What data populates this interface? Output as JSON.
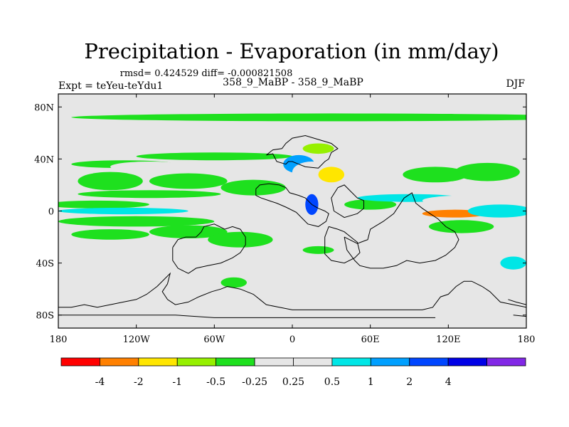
{
  "chart_data": {
    "type": "heatmap",
    "title": "Precipitation - Evaporation (in mm/day)",
    "stats_line": "rmsd= 0.424529 diff= -0.000821508",
    "left_label": "Expt = teYeu-teYdu1",
    "center_label": "358_9_MaBP - 358_9_MaBP",
    "right_label": "DJF",
    "xlim": [
      -180,
      180
    ],
    "ylim": [
      -90,
      90
    ],
    "x_ticks": [
      {
        "value": -180,
        "label": "180"
      },
      {
        "value": -120,
        "label": "120W"
      },
      {
        "value": -60,
        "label": "60W"
      },
      {
        "value": 0,
        "label": "0"
      },
      {
        "value": 60,
        "label": "60E"
      },
      {
        "value": 120,
        "label": "120E"
      },
      {
        "value": 180,
        "label": "180"
      }
    ],
    "y_ticks": [
      {
        "value": 80,
        "label": "80N"
      },
      {
        "value": 40,
        "label": "40N"
      },
      {
        "value": 0,
        "label": "0"
      },
      {
        "value": -40,
        "label": "40S"
      },
      {
        "value": -80,
        "label": "80S"
      }
    ],
    "colorbar": {
      "colors": [
        "#ff0000",
        "#ff8000",
        "#ffe600",
        "#96f000",
        "#1ee01e",
        "#e6e6e6",
        "#e6e6e6",
        "#00e6e6",
        "#00a0ff",
        "#0046ff",
        "#0000e6",
        "#8228e6"
      ],
      "labels": [
        "-4",
        "-2",
        "-1",
        "-0.5",
        "-0.25",
        "0.25",
        "0.5",
        "1",
        "2",
        "4"
      ]
    },
    "background_color": "#e6e6e6",
    "anomaly_regions": [
      {
        "lon": 30,
        "lat": 72,
        "dlon": 200,
        "dlat": 3,
        "value": -0.4
      },
      {
        "lon": -60,
        "lat": 66,
        "dlon": 60,
        "dlat": 2,
        "value": 0.35
      },
      {
        "lon": -150,
        "lat": 5,
        "dlon": 40,
        "dlat": 3,
        "value": -0.35
      },
      {
        "lon": -130,
        "lat": 0,
        "dlon": 50,
        "dlat": 2.5,
        "value": 0.7
      },
      {
        "lon": -120,
        "lat": -8,
        "dlon": 60,
        "dlat": 4,
        "value": -0.35
      },
      {
        "lon": -110,
        "lat": 13,
        "dlon": 55,
        "dlat": 3,
        "value": -0.35
      },
      {
        "lon": -140,
        "lat": 23,
        "dlon": 25,
        "dlat": 7,
        "value": -0.35
      },
      {
        "lon": -80,
        "lat": 23,
        "dlon": 30,
        "dlat": 6,
        "value": -0.45
      },
      {
        "lon": -30,
        "lat": 18,
        "dlon": 25,
        "dlat": 6,
        "value": -0.3
      },
      {
        "lon": -25,
        "lat": -3,
        "dlon": 20,
        "dlat": 10,
        "value": 0.35
      },
      {
        "lon": -80,
        "lat": -16,
        "dlon": 30,
        "dlat": 5,
        "value": -0.35
      },
      {
        "lon": -40,
        "lat": -22,
        "dlon": 25,
        "dlat": 6,
        "value": -0.3
      },
      {
        "lon": -140,
        "lat": -18,
        "dlon": 30,
        "dlat": 4,
        "value": -0.3
      },
      {
        "lon": -60,
        "lat": 42,
        "dlon": 60,
        "dlat": 3,
        "value": -0.35
      },
      {
        "lon": -130,
        "lat": 36,
        "dlon": 40,
        "dlat": 3,
        "value": -0.3
      },
      {
        "lon": -110,
        "lat": 34,
        "dlon": 30,
        "dlat": 4,
        "value": 0.3
      },
      {
        "lon": 5,
        "lat": 36,
        "dlon": 12,
        "dlat": 7,
        "value": 1.4
      },
      {
        "lon": 15,
        "lat": 30,
        "dlon": 15,
        "dlat": 8,
        "value": 0.4
      },
      {
        "lon": 15,
        "lat": 5,
        "dlon": 5,
        "dlat": 8,
        "value": 2.2
      },
      {
        "lon": 30,
        "lat": 10,
        "dlon": 10,
        "dlat": 5,
        "value": 0.45
      },
      {
        "lon": 25,
        "lat": -12,
        "dlon": 15,
        "dlat": 5,
        "value": 0.4
      },
      {
        "lon": 30,
        "lat": 28,
        "dlon": 10,
        "dlat": 6,
        "value": -1.5
      },
      {
        "lon": 20,
        "lat": 48,
        "dlon": 12,
        "dlat": 4,
        "value": -0.6
      },
      {
        "lon": 55,
        "lat": 20,
        "dlon": 15,
        "dlat": 4,
        "value": 0.3
      },
      {
        "lon": 55,
        "lat": 42,
        "dlon": 25,
        "dlat": 3,
        "value": 0.45
      },
      {
        "lon": 70,
        "lat": 36,
        "dlon": 20,
        "dlat": 3,
        "value": 0.35
      },
      {
        "lon": 85,
        "lat": 20,
        "dlon": 10,
        "dlat": 4,
        "value": 0.35
      },
      {
        "lon": 60,
        "lat": 5,
        "dlon": 20,
        "dlat": 4,
        "value": -0.35
      },
      {
        "lon": 60,
        "lat": -20,
        "dlon": 15,
        "dlat": 6,
        "value": 0.3
      },
      {
        "lon": 20,
        "lat": -38,
        "dlon": 15,
        "dlat": 4,
        "value": 0.3
      },
      {
        "lon": 110,
        "lat": 28,
        "dlon": 25,
        "dlat": 6,
        "value": -0.5
      },
      {
        "lon": 150,
        "lat": 30,
        "dlon": 25,
        "dlat": 7,
        "value": -0.5
      },
      {
        "lon": 130,
        "lat": 45,
        "dlon": 40,
        "dlat": 3,
        "value": 0.3
      },
      {
        "lon": 90,
        "lat": 10,
        "dlon": 40,
        "dlat": 3,
        "value": 0.6
      },
      {
        "lon": 125,
        "lat": -2,
        "dlon": 25,
        "dlat": 3,
        "value": -3
      },
      {
        "lon": 135,
        "lat": 8,
        "dlon": 35,
        "dlat": 4,
        "value": 0.35
      },
      {
        "lon": 160,
        "lat": 0,
        "dlon": 25,
        "dlat": 5,
        "value": 0.6
      },
      {
        "lon": 160,
        "lat": -18,
        "dlon": 20,
        "dlat": 7,
        "value": 0.35
      },
      {
        "lon": 130,
        "lat": -12,
        "dlon": 25,
        "dlat": 5,
        "value": -0.35
      },
      {
        "lon": 170,
        "lat": -40,
        "dlon": 10,
        "dlat": 5,
        "value": 0.6
      },
      {
        "lon": 150,
        "lat": -50,
        "dlon": 15,
        "dlat": 4,
        "value": 0.3
      },
      {
        "lon": 170,
        "lat": -60,
        "dlon": 8,
        "dlat": 3,
        "value": 0.3
      },
      {
        "lon": -45,
        "lat": -55,
        "dlon": 10,
        "dlat": 4,
        "value": -0.3
      },
      {
        "lon": 45,
        "lat": -33,
        "dlon": 12,
        "dlat": 4,
        "value": 0.35
      },
      {
        "lon": 100,
        "lat": -30,
        "dlon": 15,
        "dlat": 4,
        "value": 0.35
      },
      {
        "lon": 20,
        "lat": -30,
        "dlon": 12,
        "dlat": 3,
        "value": -0.3
      }
    ],
    "coastlines": [
      [
        [
          -20,
          43
        ],
        [
          -15,
          44
        ],
        [
          -12,
          38
        ],
        [
          -5,
          36
        ],
        [
          -3,
          38
        ],
        [
          0,
          38
        ],
        [
          5,
          36
        ],
        [
          10,
          34
        ],
        [
          20,
          33
        ],
        [
          25,
          38
        ],
        [
          28,
          40
        ],
        [
          30,
          45
        ],
        [
          35,
          48
        ],
        [
          30,
          52
        ],
        [
          20,
          55
        ],
        [
          10,
          58
        ],
        [
          0,
          56
        ],
        [
          -5,
          52
        ],
        [
          -8,
          48
        ],
        [
          -15,
          47
        ],
        [
          -20,
          43
        ]
      ],
      [
        [
          -28,
          17
        ],
        [
          -25,
          20
        ],
        [
          -18,
          21
        ],
        [
          -10,
          20
        ],
        [
          -5,
          18
        ],
        [
          -2,
          14
        ],
        [
          5,
          12
        ],
        [
          10,
          10
        ],
        [
          15,
          5
        ],
        [
          20,
          2
        ],
        [
          25,
          0
        ],
        [
          28,
          -2
        ],
        [
          26,
          -8
        ],
        [
          20,
          -12
        ],
        [
          12,
          -10
        ],
        [
          8,
          -6
        ],
        [
          3,
          -1
        ],
        [
          -5,
          3
        ],
        [
          -12,
          6
        ],
        [
          -18,
          8
        ],
        [
          -24,
          10
        ],
        [
          -28,
          12
        ],
        [
          -28,
          17
        ]
      ],
      [
        [
          35,
          18
        ],
        [
          40,
          20
        ],
        [
          45,
          15
        ],
        [
          50,
          10
        ],
        [
          55,
          8
        ],
        [
          55,
          2
        ],
        [
          50,
          -2
        ],
        [
          40,
          -5
        ],
        [
          32,
          0
        ],
        [
          30,
          10
        ],
        [
          35,
          18
        ]
      ],
      [
        [
          28,
          -12
        ],
        [
          35,
          -14
        ],
        [
          40,
          -16
        ],
        [
          45,
          -20
        ],
        [
          50,
          -24
        ],
        [
          52,
          -32
        ],
        [
          48,
          -36
        ],
        [
          40,
          -40
        ],
        [
          30,
          -38
        ],
        [
          25,
          -33
        ],
        [
          25,
          -20
        ],
        [
          28,
          -12
        ]
      ],
      [
        [
          40,
          -20
        ],
        [
          50,
          -25
        ],
        [
          58,
          -22
        ],
        [
          60,
          -14
        ],
        [
          70,
          -8
        ],
        [
          78,
          -2
        ],
        [
          82,
          4
        ],
        [
          86,
          10
        ],
        [
          92,
          14
        ],
        [
          95,
          6
        ],
        [
          100,
          2
        ],
        [
          106,
          -2
        ],
        [
          112,
          -6
        ],
        [
          118,
          -12
        ],
        [
          125,
          -16
        ],
        [
          128,
          -22
        ],
        [
          125,
          -28
        ],
        [
          118,
          -34
        ],
        [
          110,
          -38
        ],
        [
          98,
          -40
        ],
        [
          88,
          -38
        ],
        [
          80,
          -42
        ],
        [
          70,
          -44
        ],
        [
          60,
          -44
        ],
        [
          52,
          -42
        ],
        [
          48,
          -38
        ],
        [
          42,
          -30
        ],
        [
          40,
          -20
        ]
      ],
      [
        [
          -92,
          -28
        ],
        [
          -88,
          -22
        ],
        [
          -82,
          -20
        ],
        [
          -74,
          -20
        ],
        [
          -70,
          -16
        ],
        [
          -68,
          -12
        ],
        [
          -60,
          -10
        ],
        [
          -52,
          -14
        ],
        [
          -46,
          -12
        ],
        [
          -40,
          -14
        ],
        [
          -36,
          -20
        ],
        [
          -36,
          -26
        ],
        [
          -40,
          -32
        ],
        [
          -46,
          -36
        ],
        [
          -55,
          -40
        ],
        [
          -65,
          -42
        ],
        [
          -74,
          -44
        ],
        [
          -80,
          -48
        ],
        [
          -88,
          -44
        ],
        [
          -92,
          -38
        ],
        [
          -92,
          -28
        ]
      ],
      [
        [
          -180,
          -74
        ],
        [
          -170,
          -74
        ],
        [
          -160,
          -72
        ],
        [
          -150,
          -74
        ],
        [
          -140,
          -72
        ],
        [
          -130,
          -70
        ],
        [
          -120,
          -68
        ],
        [
          -112,
          -64
        ],
        [
          -104,
          -58
        ],
        [
          -98,
          -52
        ],
        [
          -94,
          -48
        ],
        [
          -96,
          -56
        ],
        [
          -100,
          -62
        ],
        [
          -96,
          -68
        ],
        [
          -90,
          -72
        ],
        [
          -80,
          -70
        ],
        [
          -72,
          -66
        ],
        [
          -62,
          -62
        ],
        [
          -55,
          -60
        ],
        [
          -50,
          -58
        ],
        [
          -40,
          -60
        ],
        [
          -30,
          -64
        ],
        [
          -25,
          -68
        ],
        [
          -20,
          -72
        ],
        [
          -10,
          -74
        ],
        [
          0,
          -76
        ],
        [
          20,
          -76
        ],
        [
          40,
          -76
        ],
        [
          60,
          -76
        ],
        [
          80,
          -76
        ],
        [
          100,
          -76
        ],
        [
          108,
          -74
        ],
        [
          114,
          -66
        ],
        [
          120,
          -64
        ],
        [
          126,
          -58
        ],
        [
          132,
          -54
        ],
        [
          138,
          -54
        ],
        [
          146,
          -58
        ],
        [
          152,
          -62
        ],
        [
          160,
          -70
        ],
        [
          170,
          -72
        ],
        [
          180,
          -74
        ]
      ],
      [
        [
          166,
          -68
        ],
        [
          172,
          -70
        ],
        [
          180,
          -72
        ]
      ],
      [
        [
          -180,
          -80
        ],
        [
          -160,
          -80
        ],
        [
          -140,
          -80
        ],
        [
          -120,
          -80
        ],
        [
          -90,
          -80
        ],
        [
          -60,
          -82
        ],
        [
          -30,
          -82
        ],
        [
          0,
          -82
        ],
        [
          30,
          -82
        ],
        [
          60,
          -82
        ],
        [
          90,
          -82
        ],
        [
          110,
          -82
        ]
      ],
      [
        [
          170,
          -80
        ],
        [
          180,
          -81
        ]
      ]
    ]
  }
}
